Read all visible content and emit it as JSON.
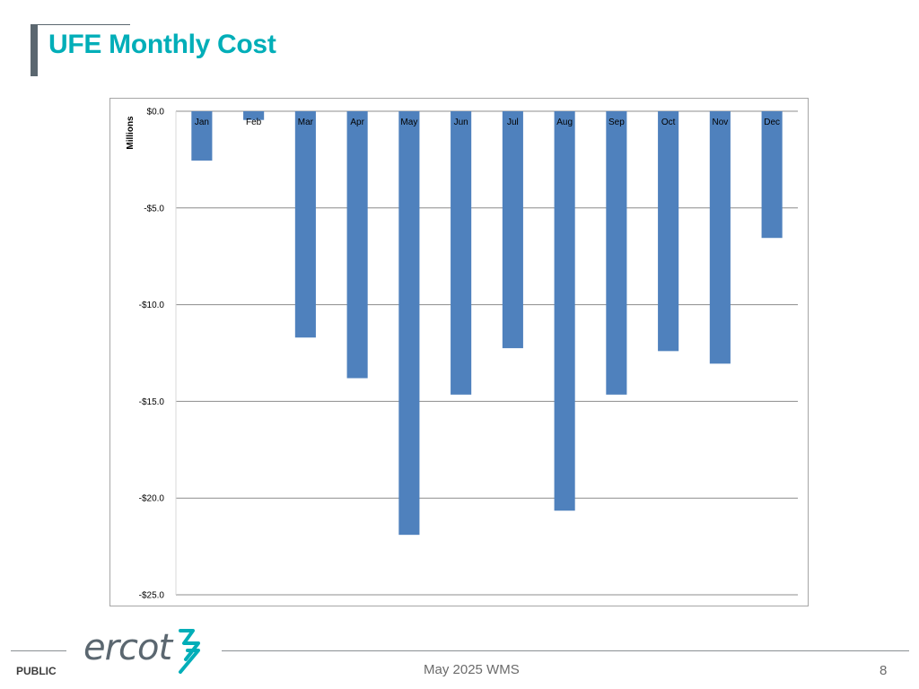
{
  "slide": {
    "title": "UFE Monthly Cost",
    "footer_label": "PUBLIC",
    "footer_center": "May 2025 WMS",
    "page_number": "8",
    "logo_text": "ercot"
  },
  "colors": {
    "title": "#00aeb8",
    "bar": "#4f81bd",
    "gridline": "#8c8c8c",
    "logo": "#5b6770",
    "logo_accent": "#00aeb8"
  },
  "chart_data": {
    "type": "bar",
    "title": "",
    "xlabel": "",
    "ylabel": "Millions",
    "categories": [
      "Jan",
      "Feb",
      "Mar",
      "Apr",
      "May",
      "Jun",
      "Jul",
      "Aug",
      "Sep",
      "Oct",
      "Nov",
      "Dec"
    ],
    "values": [
      -2.55,
      -0.45,
      -11.7,
      -13.8,
      -21.9,
      -14.65,
      -12.25,
      -20.65,
      -14.65,
      -12.4,
      -13.05,
      -6.55
    ],
    "ylim": [
      -25,
      0
    ],
    "yticks": [
      0,
      -5,
      -10,
      -15,
      -20,
      -25
    ],
    "ytick_labels": [
      "$0.0",
      "-$5.0",
      "-$10.0",
      "-$15.0",
      "-$20.0",
      "-$25.0"
    ],
    "grid": true,
    "legend": "none"
  }
}
